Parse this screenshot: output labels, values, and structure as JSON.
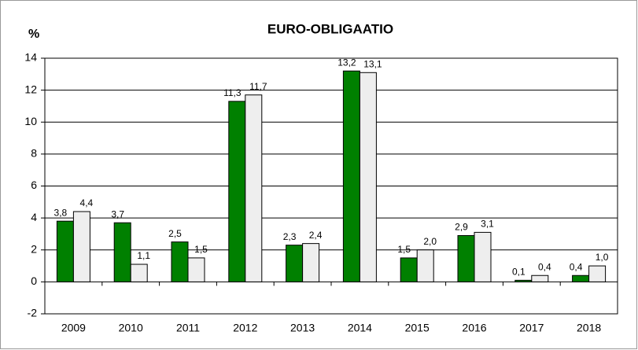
{
  "chart_data": {
    "type": "bar",
    "title": "EURO-OBLIGAATIO",
    "ylabel": "%",
    "categories": [
      "2009",
      "2010",
      "2011",
      "2012",
      "2013",
      "2014",
      "2015",
      "2016",
      "2017",
      "2018"
    ],
    "series": [
      {
        "color": "#008000",
        "values": [
          3.8,
          3.7,
          2.5,
          11.3,
          2.3,
          13.2,
          1.5,
          2.9,
          0.1,
          0.4
        ],
        "value_labels": [
          "3,8",
          "3,7",
          "2,5",
          "11,3",
          "2,3",
          "13,2",
          "1,5",
          "2,9",
          "0,1",
          "0,4"
        ]
      },
      {
        "color": "#eeeeee",
        "values": [
          4.4,
          1.1,
          1.5,
          11.7,
          2.4,
          13.1,
          2.0,
          3.1,
          0.4,
          1.0
        ],
        "value_labels": [
          "4,4",
          "1,1",
          "1,5",
          "11,7",
          "2,4",
          "13,1",
          "2,0",
          "3,1",
          "0,4",
          "1,0"
        ]
      }
    ],
    "ylim": [
      -2,
      14
    ],
    "yticks": [
      -2,
      0,
      2,
      4,
      6,
      8,
      10,
      12,
      14
    ],
    "grid": true
  }
}
